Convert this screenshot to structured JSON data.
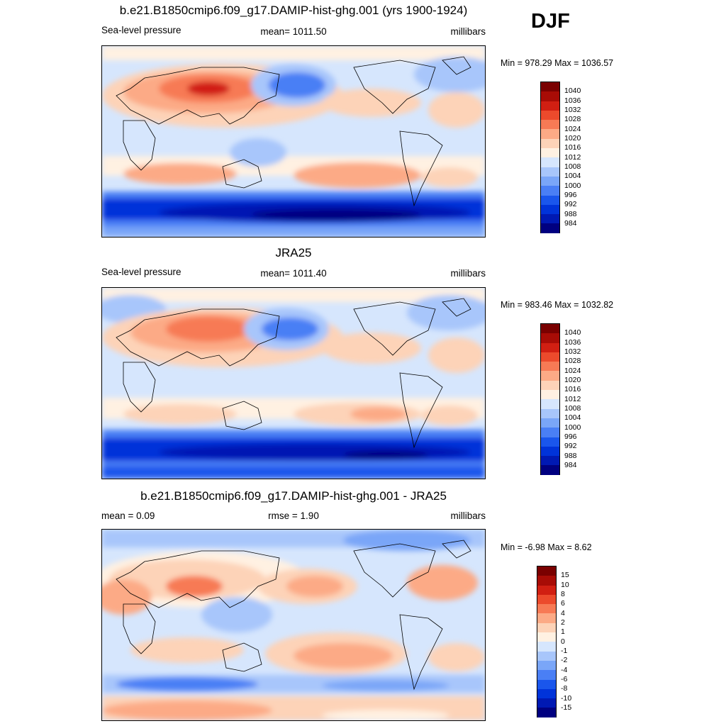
{
  "season": "DJF",
  "colors": {
    "abs": [
      "#000080",
      "#0019b3",
      "#0033d9",
      "#1a56ec",
      "#4a7ff5",
      "#7aa6f8",
      "#a8c6fb",
      "#d6e6fd",
      "#fff1e2",
      "#fdd3b8",
      "#fcaa86",
      "#f77a55",
      "#ec4a2c",
      "#d11f12",
      "#a80c06",
      "#7a0000"
    ],
    "diff": [
      "#000080",
      "#0019b3",
      "#0033d9",
      "#1a56ec",
      "#4a7ff5",
      "#7aa6f8",
      "#a8c6fb",
      "#d6e6fd",
      "#fff1e2",
      "#fdd3b8",
      "#fcaa86",
      "#f77a55",
      "#ec4a2c",
      "#d11f12",
      "#a80c06",
      "#7a0000"
    ]
  },
  "panels": [
    {
      "title": "b.e21.B1850cmip6.f09_g17.DAMIP-hist-ghg.001 (yrs 1900-1924)",
      "left_label": "Sea-level pressure",
      "center_label": "mean= 1011.50",
      "units": "millibars",
      "minmax": "Min = 978.29 Max = 1036.57",
      "colorbar_labels": [
        "1040",
        "1036",
        "1032",
        "1028",
        "1024",
        "1020",
        "1016",
        "1012",
        "1008",
        "1004",
        "1000",
        "996",
        "992",
        "988",
        "984"
      ]
    },
    {
      "title": "JRA25",
      "left_label": "Sea-level pressure",
      "center_label": "mean= 1011.40",
      "units": "millibars",
      "minmax": "Min = 983.46 Max = 1032.82",
      "colorbar_labels": [
        "1040",
        "1036",
        "1032",
        "1028",
        "1024",
        "1020",
        "1016",
        "1012",
        "1008",
        "1004",
        "1000",
        "996",
        "992",
        "988",
        "984"
      ]
    },
    {
      "title": "b.e21.B1850cmip6.f09_g17.DAMIP-hist-ghg.001 - JRA25",
      "left_label": "mean =   0.09",
      "center_label": "rmse =   1.90",
      "units": "millibars",
      "minmax": "Min =  -6.98 Max =   8.62",
      "colorbar_labels": [
        "15",
        "10",
        "8",
        "6",
        "4",
        "2",
        "1",
        "0",
        "-1",
        "-2",
        "-4",
        "-6",
        "-8",
        "-10",
        "-15"
      ]
    }
  ]
}
